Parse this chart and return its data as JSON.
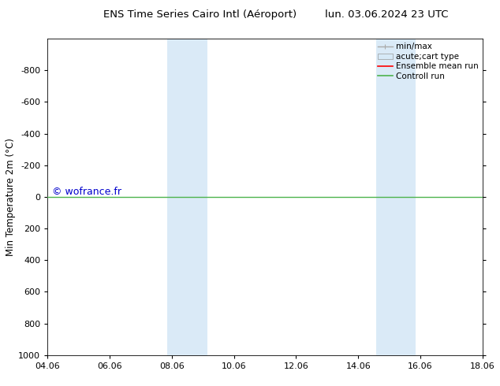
{
  "title_left": "ENS Time Series Cairo Intl (Aéroport)",
  "title_right": "lun. 03.06.2024 23 UTC",
  "ylabel": "Min Temperature 2m (°C)",
  "ylim_top": -1000,
  "ylim_bottom": 1000,
  "yticks": [
    -800,
    -600,
    -400,
    -200,
    0,
    200,
    400,
    600,
    800,
    1000
  ],
  "xlim_left": 0,
  "xlim_right": 14,
  "xtick_positions": [
    0,
    2,
    4,
    6,
    8,
    10,
    12,
    14
  ],
  "xtick_labels": [
    "04.06",
    "06.06",
    "08.06",
    "10.06",
    "12.06",
    "14.06",
    "16.06",
    "18.06"
  ],
  "shaded_regions": [
    [
      3.85,
      4.57
    ],
    [
      4.57,
      5.14
    ],
    [
      10.57,
      11.28
    ],
    [
      11.28,
      11.85
    ]
  ],
  "shade_color": "#daeaf7",
  "green_line_y": 0,
  "green_line_color": "#4db34d",
  "watermark_text": "© wofrance.fr",
  "watermark_color": "#0000cc",
  "legend_labels": [
    "min/max",
    "acute;cart type",
    "Ensemble mean run",
    "Controll run"
  ],
  "legend_line_color": "#aaaaaa",
  "legend_patch_color": "#d6e9f7",
  "legend_red_color": "#ff0000",
  "legend_green_color": "#4db34d",
  "background_color": "#ffffff",
  "plot_bg_color": "#ffffff",
  "title_fontsize": 9.5,
  "axis_fontsize": 8.5,
  "tick_fontsize": 8
}
